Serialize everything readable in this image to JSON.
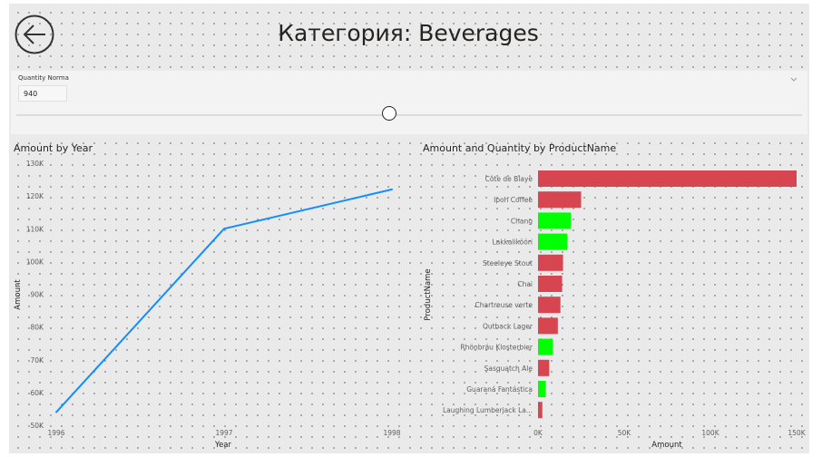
{
  "header": {
    "title": "Категория: Beverages",
    "back_icon": "back-arrow-icon"
  },
  "slicer": {
    "label": "Quantity Norma",
    "value": "940",
    "position": 0.475
  },
  "colors": {
    "line": "#118DFF",
    "red": "#D64550",
    "green": "#00FF00"
  },
  "chart_data": [
    {
      "type": "line",
      "title": "Amount by Year",
      "xlabel": "Year",
      "ylabel": "Amount",
      "x": [
        "1996",
        "1997",
        "1998"
      ],
      "values": [
        54000,
        110000,
        122000
      ],
      "yticks": [
        "50K",
        "60K",
        "70K",
        "80K",
        "90K",
        "100K",
        "110K",
        "120K",
        "130K"
      ],
      "ylim": [
        50000,
        130000
      ]
    },
    {
      "type": "bar",
      "orientation": "horizontal",
      "title": "Amount and Quantity by ProductName",
      "xlabel": "Amount",
      "ylabel": "ProductName",
      "xticks": [
        "0K",
        "50K",
        "100K",
        "150K"
      ],
      "xlim": [
        0,
        150000
      ],
      "categories": [
        "Côte de Blaye",
        "Ipoh Coffee",
        "Chang",
        "Lakkalikööri",
        "Steeleye Stout",
        "Chai",
        "Chartreuse verte",
        "Outback Lager",
        "Rhönbräu Klosterbier",
        "Sasquatch Ale",
        "Guaraná Fantástica",
        "Laughing Lumberjack La..."
      ],
      "values": [
        150000,
        25000,
        19000,
        17000,
        14500,
        14000,
        13000,
        11500,
        8500,
        6500,
        4500,
        2500
      ],
      "bar_colors": [
        "red",
        "red",
        "green",
        "green",
        "red",
        "red",
        "red",
        "red",
        "green",
        "red",
        "green",
        "red"
      ]
    }
  ]
}
